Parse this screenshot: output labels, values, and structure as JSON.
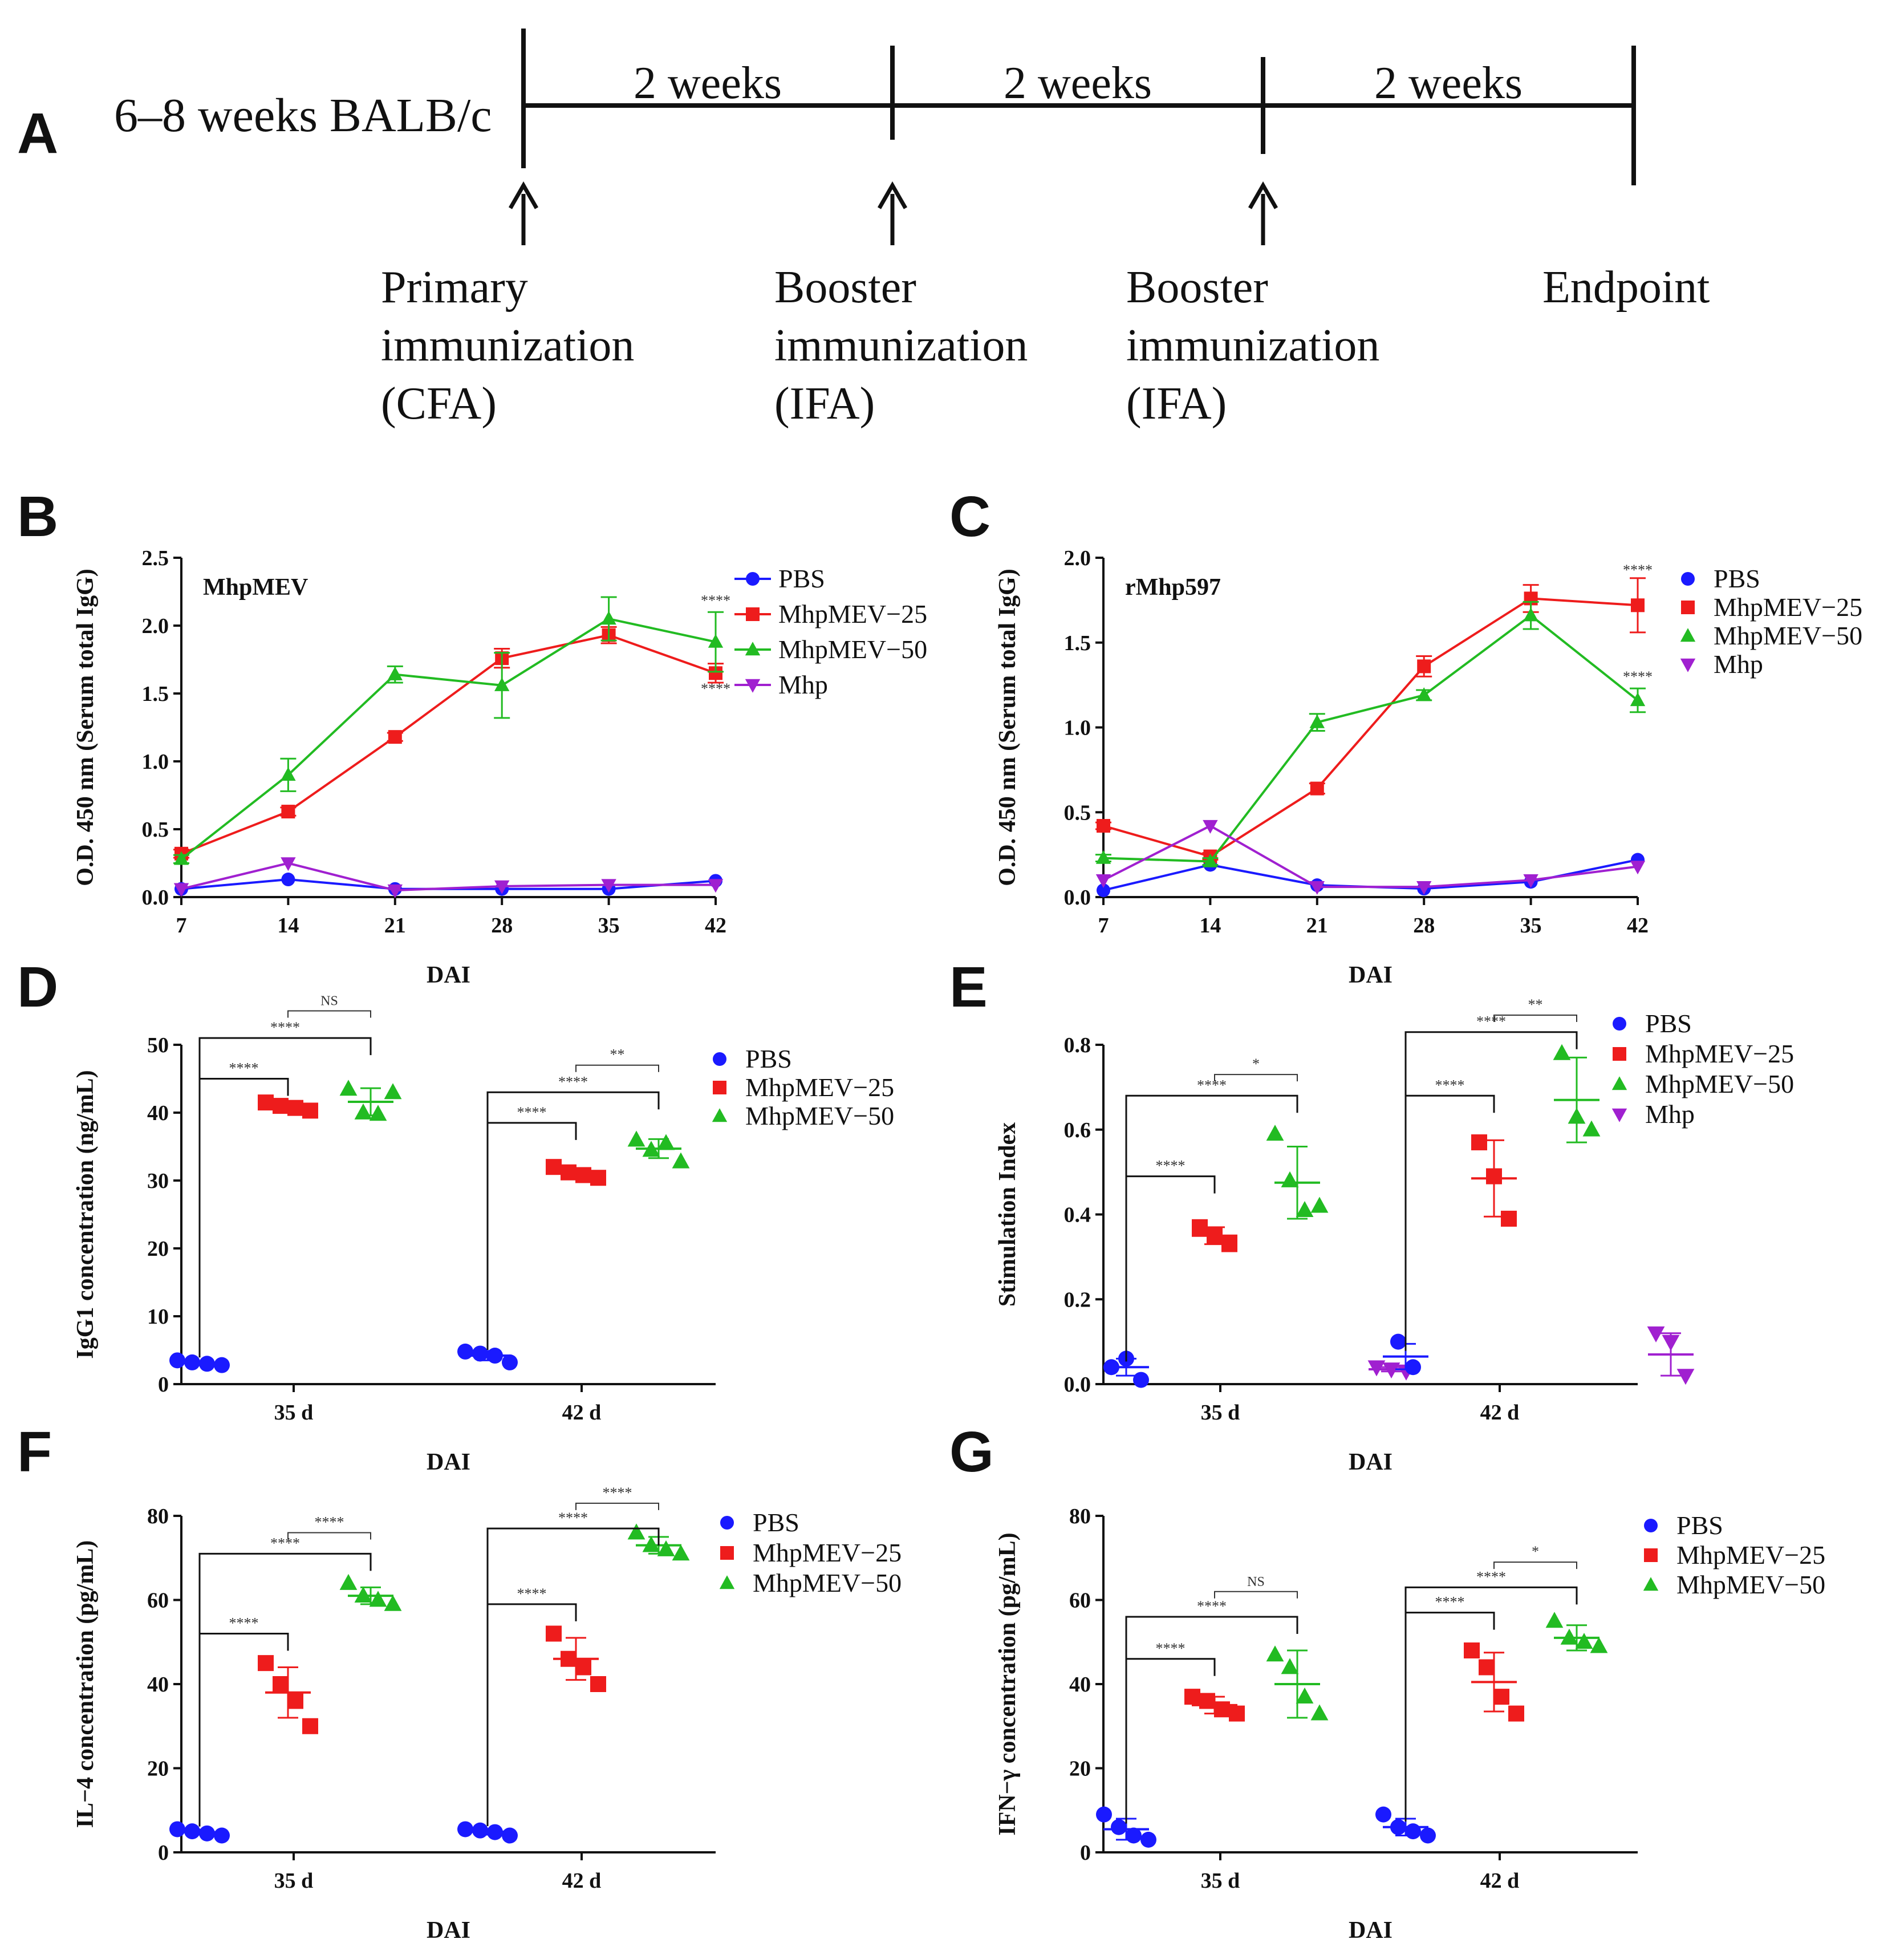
{
  "colors": {
    "PBS": "#1a1aff",
    "MhpMEV-25": "#ee1c1c",
    "MhpMEV-50": "#22bb22",
    "Mhp": "#a020d0"
  },
  "panelA": {
    "label": "A",
    "subject": "6–8 weeks BALB/c",
    "intervals": [
      "2 weeks",
      "2 weeks",
      "2 weeks"
    ],
    "events": [
      {
        "lines": [
          "Primary",
          "immunization",
          "(CFA)"
        ]
      },
      {
        "lines": [
          "Booster",
          "immunization",
          "(IFA)"
        ]
      },
      {
        "lines": [
          "Booster",
          "immunization",
          "(IFA)"
        ]
      },
      {
        "lines": [
          "Endpoint"
        ]
      }
    ]
  },
  "chart_data": [
    {
      "panel": "B",
      "type": "line",
      "title": "MhpMEV",
      "ylabel": "O.D. 450 nm (Serum total IgG)",
      "xlabel": "DAI",
      "x": [
        7,
        14,
        21,
        28,
        35,
        42
      ],
      "ylim": [
        0,
        2.5
      ],
      "yticks": [
        "0.0",
        "0.5",
        "1.0",
        "1.5",
        "2.0",
        "2.5"
      ],
      "series": [
        {
          "name": "PBS",
          "marker": "circle",
          "values": [
            0.06,
            0.13,
            0.06,
            0.06,
            0.06,
            0.12
          ],
          "err": [
            0,
            0,
            0,
            0,
            0,
            0
          ]
        },
        {
          "name": "MhpMEV−25",
          "marker": "square",
          "values": [
            0.32,
            0.63,
            1.18,
            1.76,
            1.93,
            1.65
          ],
          "err": [
            0.03,
            0.03,
            0.03,
            0.07,
            0.06,
            0.07
          ]
        },
        {
          "name": "MhpMEV−50",
          "marker": "triangle",
          "values": [
            0.28,
            0.9,
            1.64,
            1.56,
            2.05,
            1.88
          ],
          "err": [
            0.03,
            0.12,
            0.06,
            0.24,
            0.16,
            0.22
          ]
        },
        {
          "name": "Mhp",
          "marker": "tridown",
          "values": [
            0.06,
            0.25,
            0.05,
            0.08,
            0.09,
            0.09
          ],
          "err": [
            0,
            0,
            0,
            0,
            0,
            0
          ]
        }
      ],
      "annotations": [
        {
          "text": "****",
          "x": 42,
          "y": 2.15
        },
        {
          "text": "****",
          "x": 42,
          "y": 1.5
        }
      ]
    },
    {
      "panel": "C",
      "type": "line",
      "title": "rMhp597",
      "ylabel": "O.D. 450 nm (Serum total IgG)",
      "xlabel": "DAI",
      "x": [
        7,
        14,
        21,
        28,
        35,
        42
      ],
      "ylim": [
        0,
        2.0
      ],
      "yticks": [
        "0.0",
        "0.5",
        "1.0",
        "1.5",
        "2.0"
      ],
      "series": [
        {
          "name": "PBS",
          "marker": "circle",
          "values": [
            0.04,
            0.19,
            0.07,
            0.05,
            0.09,
            0.22
          ],
          "err": [
            0,
            0,
            0,
            0,
            0,
            0
          ]
        },
        {
          "name": "MhpMEV−25",
          "marker": "square",
          "values": [
            0.42,
            0.24,
            0.64,
            1.36,
            1.76,
            1.72
          ],
          "err": [
            0.02,
            0.02,
            0.03,
            0.06,
            0.08,
            0.16
          ]
        },
        {
          "name": "MhpMEV−50",
          "marker": "triangle",
          "values": [
            0.23,
            0.21,
            1.03,
            1.19,
            1.66,
            1.16
          ],
          "err": [
            0.02,
            0.02,
            0.05,
            0.03,
            0.08,
            0.07
          ]
        },
        {
          "name": "Mhp",
          "marker": "tridown",
          "values": [
            0.1,
            0.42,
            0.06,
            0.06,
            0.1,
            0.18
          ],
          "err": [
            0,
            0,
            0,
            0,
            0,
            0
          ]
        }
      ],
      "annotations": [
        {
          "text": "****",
          "x": 42,
          "y": 1.9
        },
        {
          "text": "****",
          "x": 42,
          "y": 1.27
        }
      ]
    },
    {
      "panel": "D",
      "type": "scatter",
      "ylabel": "IgG1 concentration (ng/mL)",
      "xlabel": "DAI",
      "categories": [
        "35 d",
        "42 d"
      ],
      "ylim": [
        0,
        50
      ],
      "yticks": [
        "0",
        "10",
        "20",
        "30",
        "40",
        "50"
      ],
      "groups": [
        {
          "cat": "35 d",
          "name": "PBS",
          "points": [
            3.5,
            3.2,
            3.0,
            2.8
          ],
          "mean": 3.1,
          "sd": 0.3
        },
        {
          "cat": "35 d",
          "name": "MhpMEV−25",
          "points": [
            41.5,
            41.0,
            40.7,
            40.3
          ],
          "mean": 40.9,
          "sd": 0.5
        },
        {
          "cat": "35 d",
          "name": "MhpMEV−50",
          "points": [
            43.5,
            40.0,
            39.8,
            43.0
          ],
          "mean": 41.6,
          "sd": 2.0
        },
        {
          "cat": "42 d",
          "name": "PBS",
          "points": [
            4.8,
            4.5,
            4.2,
            3.2
          ],
          "mean": 4.2,
          "sd": 0.7
        },
        {
          "cat": "42 d",
          "name": "MhpMEV−25",
          "points": [
            32.0,
            31.2,
            30.8,
            30.4
          ],
          "mean": 31.1,
          "sd": 0.7
        },
        {
          "cat": "42 d",
          "name": "MhpMEV−50",
          "points": [
            36.0,
            34.5,
            35.5,
            32.8
          ],
          "mean": 34.7,
          "sd": 1.4
        }
      ],
      "comparisons": [
        {
          "cat": "35 d",
          "from": "PBS",
          "to": "MhpMEV−25",
          "y": 45,
          "label": "****"
        },
        {
          "cat": "35 d",
          "from": "PBS",
          "to": "MhpMEV−50",
          "y": 51,
          "label": "****"
        },
        {
          "cat": "35 d",
          "from": "MhpMEV−25",
          "to": "MhpMEV−50",
          "y": 55,
          "label": "NS"
        },
        {
          "cat": "42 d",
          "from": "PBS",
          "to": "MhpMEV−25",
          "y": 38.5,
          "label": "****"
        },
        {
          "cat": "42 d",
          "from": "PBS",
          "to": "MhpMEV−50",
          "y": 43,
          "label": "****"
        },
        {
          "cat": "42 d",
          "from": "MhpMEV−25",
          "to": "MhpMEV−50",
          "y": 47,
          "label": "**"
        }
      ],
      "legend": [
        "PBS",
        "MhpMEV−25",
        "MhpMEV−50"
      ]
    },
    {
      "panel": "E",
      "type": "scatter",
      "ylabel": "Stimulation Index",
      "xlabel": "DAI",
      "categories": [
        "35 d",
        "42 d"
      ],
      "ylim": [
        0,
        0.8
      ],
      "yticks": [
        "0.0",
        "0.2",
        "0.4",
        "0.6",
        "0.8"
      ],
      "groups": [
        {
          "cat": "35 d",
          "name": "PBS",
          "points": [
            0.04,
            0.06,
            0.01
          ],
          "mean": 0.04,
          "sd": 0.02
        },
        {
          "cat": "35 d",
          "name": "MhpMEV−25",
          "points": [
            0.37,
            0.35,
            0.33
          ],
          "mean": 0.35,
          "sd": 0.02
        },
        {
          "cat": "35 d",
          "name": "MhpMEV−50",
          "points": [
            0.59,
            0.48,
            0.41,
            0.42
          ],
          "mean": 0.475,
          "sd": 0.085
        },
        {
          "cat": "35 d",
          "name": "Mhp",
          "points": [
            0.04,
            0.035,
            0.03
          ],
          "mean": 0.035,
          "sd": 0.005
        },
        {
          "cat": "42 d",
          "name": "PBS",
          "points": [
            0.1,
            0.04
          ],
          "mean": 0.065,
          "sd": 0.03
        },
        {
          "cat": "42 d",
          "name": "MhpMEV−25",
          "points": [
            0.57,
            0.49,
            0.39
          ],
          "mean": 0.485,
          "sd": 0.09
        },
        {
          "cat": "42 d",
          "name": "MhpMEV−50",
          "points": [
            0.78,
            0.63,
            0.6
          ],
          "mean": 0.67,
          "sd": 0.1
        },
        {
          "cat": "42 d",
          "name": "Mhp",
          "points": [
            0.12,
            0.1,
            0.02
          ],
          "mean": 0.07,
          "sd": 0.05
        }
      ],
      "comparisons": [
        {
          "cat": "35 d",
          "from": "PBS",
          "to": "MhpMEV−25",
          "y": 0.49,
          "label": "****"
        },
        {
          "cat": "35 d",
          "from": "PBS",
          "to": "MhpMEV−50",
          "y": 0.68,
          "label": "****"
        },
        {
          "cat": "35 d",
          "from": "MhpMEV−25",
          "to": "MhpMEV−50",
          "y": 0.73,
          "label": "*"
        },
        {
          "cat": "42 d",
          "from": "PBS",
          "to": "MhpMEV−25",
          "y": 0.68,
          "label": "****"
        },
        {
          "cat": "42 d",
          "from": "PBS",
          "to": "MhpMEV−50",
          "y": 0.83,
          "label": "****"
        },
        {
          "cat": "42 d",
          "from": "MhpMEV−25",
          "to": "MhpMEV−50",
          "y": 0.87,
          "label": "**"
        }
      ],
      "legend": [
        "PBS",
        "MhpMEV−25",
        "MhpMEV−50",
        "Mhp"
      ]
    },
    {
      "panel": "F",
      "type": "scatter",
      "ylabel": "IL−4 concentration (pg/mL)",
      "xlabel": "DAI",
      "categories": [
        "35 d",
        "42 d"
      ],
      "ylim": [
        0,
        80
      ],
      "yticks": [
        "0",
        "20",
        "40",
        "60",
        "80"
      ],
      "groups": [
        {
          "cat": "35 d",
          "name": "PBS",
          "points": [
            5.5,
            5.0,
            4.5,
            4.0
          ],
          "mean": 4.8,
          "sd": 0.6
        },
        {
          "cat": "35 d",
          "name": "MhpMEV−25",
          "points": [
            45,
            40,
            36,
            30
          ],
          "mean": 38,
          "sd": 6
        },
        {
          "cat": "35 d",
          "name": "MhpMEV−50",
          "points": [
            64,
            61,
            60,
            59
          ],
          "mean": 61,
          "sd": 2
        },
        {
          "cat": "42 d",
          "name": "PBS",
          "points": [
            5.5,
            5.2,
            4.8,
            4.0
          ],
          "mean": 4.9,
          "sd": 0.7
        },
        {
          "cat": "42 d",
          "name": "MhpMEV−25",
          "points": [
            52,
            46,
            44,
            40
          ],
          "mean": 46,
          "sd": 5
        },
        {
          "cat": "42 d",
          "name": "MhpMEV−50",
          "points": [
            76,
            73,
            72,
            71
          ],
          "mean": 73,
          "sd": 2
        }
      ],
      "comparisons": [
        {
          "cat": "35 d",
          "from": "PBS",
          "to": "MhpMEV−25",
          "y": 52,
          "label": "****"
        },
        {
          "cat": "35 d",
          "from": "PBS",
          "to": "MhpMEV−50",
          "y": 71,
          "label": "****"
        },
        {
          "cat": "35 d",
          "from": "MhpMEV−25",
          "to": "MhpMEV−50",
          "y": 76,
          "label": "****"
        },
        {
          "cat": "42 d",
          "from": "PBS",
          "to": "MhpMEV−25",
          "y": 59,
          "label": "****"
        },
        {
          "cat": "42 d",
          "from": "PBS",
          "to": "MhpMEV−50",
          "y": 77,
          "label": "****"
        },
        {
          "cat": "42 d",
          "from": "MhpMEV−25",
          "to": "MhpMEV−50",
          "y": 83,
          "label": "****"
        }
      ],
      "legend": [
        "PBS",
        "MhpMEV−25",
        "MhpMEV−50"
      ]
    },
    {
      "panel": "G",
      "type": "scatter",
      "ylabel": "IFN−γ concentration (pg/mL)",
      "xlabel": "DAI",
      "categories": [
        "35 d",
        "42 d"
      ],
      "ylim": [
        0,
        80
      ],
      "yticks": [
        "0",
        "20",
        "40",
        "60",
        "80"
      ],
      "groups": [
        {
          "cat": "35 d",
          "name": "PBS",
          "points": [
            9,
            6,
            4,
            3
          ],
          "mean": 5.5,
          "sd": 2.5
        },
        {
          "cat": "35 d",
          "name": "MhpMEV−25",
          "points": [
            37,
            36,
            34,
            33
          ],
          "mean": 35,
          "sd": 2
        },
        {
          "cat": "35 d",
          "name": "MhpMEV−50",
          "points": [
            47,
            44,
            37,
            33
          ],
          "mean": 40,
          "sd": 8
        },
        {
          "cat": "42 d",
          "name": "PBS",
          "points": [
            9,
            6,
            5,
            4
          ],
          "mean": 6,
          "sd": 2
        },
        {
          "cat": "42 d",
          "name": "MhpMEV−25",
          "points": [
            48,
            44,
            37,
            33
          ],
          "mean": 40.5,
          "sd": 7
        },
        {
          "cat": "42 d",
          "name": "MhpMEV−50",
          "points": [
            55,
            51,
            50,
            49
          ],
          "mean": 51,
          "sd": 3
        }
      ],
      "comparisons": [
        {
          "cat": "35 d",
          "from": "PBS",
          "to": "MhpMEV−25",
          "y": 46,
          "label": "****"
        },
        {
          "cat": "35 d",
          "from": "PBS",
          "to": "MhpMEV−50",
          "y": 56,
          "label": "****"
        },
        {
          "cat": "35 d",
          "from": "MhpMEV−25",
          "to": "MhpMEV−50",
          "y": 62,
          "label": "NS"
        },
        {
          "cat": "42 d",
          "from": "PBS",
          "to": "MhpMEV−25",
          "y": 57,
          "label": "****"
        },
        {
          "cat": "42 d",
          "from": "PBS",
          "to": "MhpMEV−50",
          "y": 63,
          "label": "****"
        },
        {
          "cat": "42 d",
          "from": "MhpMEV−25",
          "to": "MhpMEV−50",
          "y": 69,
          "label": "*"
        }
      ],
      "legend": [
        "PBS",
        "MhpMEV−25",
        "MhpMEV−50"
      ]
    }
  ]
}
